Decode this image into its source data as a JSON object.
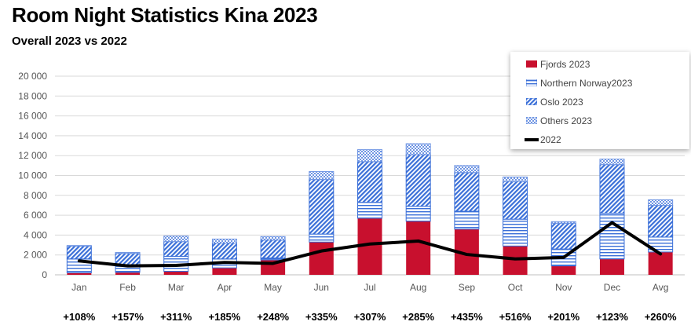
{
  "header": {
    "title": "Room Night Statistics Kina 2023",
    "subtitle": "Overall 2023 vs 2022"
  },
  "colors": {
    "fjords": "#c8102e",
    "northern_norway": "#3a6fd8",
    "oslo": "#3a6fd8",
    "others": "#3a6fd8",
    "line_2022": "#000000",
    "grid": "#d9d9d9"
  },
  "chart_data": {
    "type": "bar",
    "stacked": true,
    "categories": [
      "Jan",
      "Feb",
      "Mar",
      "Apr",
      "May",
      "Jun",
      "Jul",
      "Aug",
      "Sep",
      "Oct",
      "Nov",
      "Dec",
      "Avg"
    ],
    "series": [
      {
        "name": "Fjords 2023",
        "pattern": "solid",
        "values": [
          200,
          250,
          350,
          700,
          1500,
          3300,
          5700,
          5400,
          4600,
          2900,
          900,
          1600,
          2300
        ]
      },
      {
        "name": "Northern Norway2023",
        "pattern": "horizontal-lines",
        "values": [
          1400,
          600,
          1500,
          900,
          200,
          800,
          1600,
          1500,
          1800,
          2700,
          1700,
          4600,
          1500
        ]
      },
      {
        "name": "Oslo 2023",
        "pattern": "diagonal-lines",
        "values": [
          1300,
          1300,
          1500,
          1600,
          1800,
          5500,
          4100,
          5200,
          3900,
          3800,
          2600,
          4900,
          3200
        ]
      },
      {
        "name": "Others 2023",
        "pattern": "checker",
        "values": [
          50,
          100,
          550,
          400,
          350,
          800,
          1200,
          1100,
          700,
          450,
          150,
          550,
          550
        ]
      }
    ],
    "line": {
      "name": "2022",
      "values": [
        1400,
        900,
        950,
        1250,
        1150,
        2400,
        3100,
        3400,
        2050,
        1600,
        1750,
        5250,
        2100
      ]
    },
    "growth_labels": [
      "+108%",
      "+157%",
      "+311%",
      "+185%",
      "+248%",
      "+335%",
      "+307%",
      "+285%",
      "+435%",
      "+516%",
      "+201%",
      "+123%",
      "+260%"
    ],
    "y_ticks": [
      "0",
      "2 000",
      "4 000",
      "6 000",
      "8 000",
      "10 000",
      "12 000",
      "14 000",
      "16 000",
      "18 000",
      "20 000"
    ],
    "ylim": [
      0,
      20000
    ],
    "grid": true,
    "legend_position": "top-right"
  },
  "legend": {
    "items": [
      "Fjords 2023",
      "Northern Norway2023",
      "Oslo 2023",
      "Others 2023",
      "2022"
    ]
  }
}
